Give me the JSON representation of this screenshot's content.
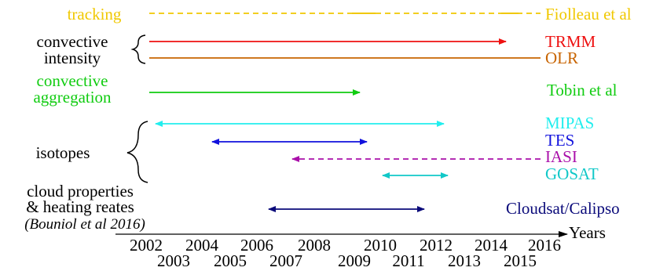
{
  "colors": {
    "tracking": "#f0c800",
    "red": "#ee1111",
    "orange": "#c86400",
    "green": "#11cc11",
    "cyan": "#22eeee",
    "blue": "#1111dd",
    "magenta": "#aa10aa",
    "teal": "#11c8c8",
    "navy": "#0a0a7a",
    "black": "#000000"
  },
  "left_labels": {
    "tracking": "tracking",
    "convective_intensity_1": "convective",
    "convective_intensity_2": "intensity",
    "convective_aggregation_1": "convective",
    "convective_aggregation_2": "aggregation",
    "isotopes": "isotopes",
    "cloud_1": "cloud properties",
    "cloud_2": "& heating reates",
    "cloud_3": "(Bouniol et al 2016)"
  },
  "right_labels": {
    "fiolleau": "Fiolleau et al",
    "trmm": "TRMM",
    "olr": "OLR",
    "tobin": "Tobin et al",
    "mipas": "MIPAS",
    "tes": "TES",
    "iasi": "IASI",
    "gosat": "GOSAT",
    "cloudsat": "Cloudsat/Calipso"
  },
  "axis": {
    "label": "Years",
    "ticks_even": [
      "2002",
      "2004",
      "2006",
      "2008",
      "2010",
      "2012",
      "2014",
      "2016"
    ],
    "ticks_odd": [
      "2003",
      "2005",
      "2007",
      "2009",
      "2011",
      "2013",
      "2015"
    ]
  }
}
